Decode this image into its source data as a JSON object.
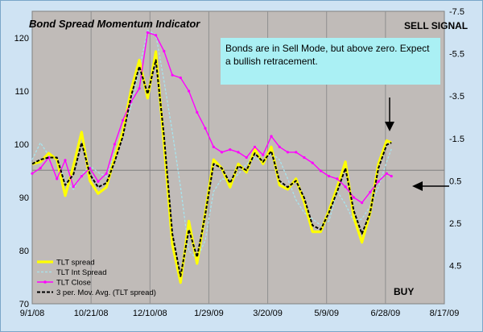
{
  "chart_data": {
    "type": "line",
    "title": "Bond Spread Momentum Indicator",
    "annotations": {
      "top_right": "SELL SIGNAL",
      "bottom_right": "BUY",
      "note_lines": [
        "Bonds are in Sell Mode, but above zero.  Expect",
        "a bullish retracement."
      ]
    },
    "x_ticks": [
      "9/1/08",
      "10/21/08",
      "12/10/08",
      "1/29/09",
      "3/20/09",
      "5/9/09",
      "6/28/09",
      "8/17/09"
    ],
    "y_left_ticks": [
      "70",
      "80",
      "90",
      "100",
      "110",
      "120"
    ],
    "y_right_ticks": [
      "-7.5",
      "-5.5",
      "-3.5",
      "-1.5",
      "0.5",
      "2.5",
      "4.5"
    ],
    "y_left_range": [
      70,
      125
    ],
    "y_right_range": [
      6.3,
      -7.5
    ],
    "y_right_inverted": true,
    "zero_line_right": 0,
    "legend_placement": "bottom-left",
    "series": [
      {
        "name": "TLT spread",
        "axis": "right",
        "color": "#ffff00",
        "x": [
          "9/1/08",
          "9/8/08",
          "9/15/08",
          "9/22/08",
          "9/29/08",
          "10/6/08",
          "10/13/08",
          "10/20/08",
          "10/27/08",
          "11/3/08",
          "11/10/08",
          "11/17/08",
          "11/24/08",
          "12/1/08",
          "12/8/08",
          "12/15/08",
          "12/22/08",
          "12/29/08",
          "1/5/09",
          "1/12/09",
          "1/19/09",
          "1/26/09",
          "2/2/09",
          "2/9/09",
          "2/16/09",
          "2/23/09",
          "3/2/09",
          "3/9/09",
          "3/16/09",
          "3/23/09",
          "3/30/09",
          "4/6/09",
          "4/13/09",
          "4/20/09",
          "4/27/09",
          "5/4/09",
          "5/11/09",
          "5/18/09",
          "5/25/09",
          "6/1/09",
          "6/8/09",
          "6/15/09",
          "6/22/09",
          "6/29/09",
          "7/3/09"
        ],
        "values": [
          -0.3,
          -0.4,
          -0.8,
          -0.5,
          1.2,
          -0.2,
          -1.8,
          0.5,
          1.1,
          0.8,
          -0.6,
          -1.8,
          -3.8,
          -5.2,
          -3.4,
          -5.6,
          -1.2,
          3.5,
          5.3,
          2.4,
          4.4,
          2.0,
          -0.5,
          -0.1,
          0.8,
          -0.3,
          0.1,
          -1.0,
          -0.3,
          -1.1,
          0.7,
          0.9,
          0.4,
          1.5,
          2.9,
          2.9,
          1.9,
          0.8,
          -0.4,
          2.2,
          3.4,
          2.0,
          -0.3,
          -1.4,
          -1.3
        ]
      },
      {
        "name": "TLT Int Spread",
        "axis": "right",
        "color": "#a6e4ee",
        "x": [
          "9/1/08",
          "9/8/08",
          "9/15/08",
          "9/22/08",
          "9/29/08",
          "10/6/08",
          "10/13/08",
          "10/20/08",
          "10/27/08",
          "11/3/08",
          "11/10/08",
          "11/17/08",
          "11/24/08",
          "12/1/08",
          "12/8/08",
          "12/15/08",
          "12/22/08",
          "12/29/08",
          "1/5/09",
          "1/12/09",
          "1/19/09",
          "1/26/09",
          "2/2/09",
          "2/9/09",
          "2/16/09",
          "2/23/09",
          "3/2/09",
          "3/9/09",
          "3/16/09",
          "3/23/09",
          "3/30/09",
          "4/6/09",
          "4/13/09",
          "4/20/09",
          "4/27/09",
          "5/4/09",
          "5/11/09",
          "5/18/09",
          "5/25/09",
          "6/1/09",
          "6/8/09",
          "6/15/09",
          "6/22/09",
          "6/29/09",
          "7/3/09"
        ],
        "values": [
          -0.5,
          -1.3,
          -0.7,
          -0.5,
          0.5,
          0.9,
          0.2,
          -0.2,
          0.1,
          0.3,
          -0.8,
          -1.8,
          -3.0,
          -4.8,
          -6.6,
          -6.4,
          -4.2,
          -1.8,
          0.8,
          3.8,
          4.2,
          3.3,
          1.0,
          0.4,
          0.5,
          0.2,
          -0.3,
          -0.6,
          -0.4,
          -0.8,
          -0.5,
          0.4,
          1.4,
          2.0,
          2.3,
          2.6,
          2.4,
          1.0,
          1.6,
          2.4,
          2.3,
          1.7,
          0.8,
          -0.4,
          -1.0
        ]
      },
      {
        "name": "TLT Close",
        "axis": "left",
        "color": "#ff00ff",
        "x": [
          "9/1/08",
          "9/8/08",
          "9/15/08",
          "9/22/08",
          "9/29/08",
          "10/6/08",
          "10/13/08",
          "10/20/08",
          "10/27/08",
          "11/3/08",
          "11/10/08",
          "11/17/08",
          "11/24/08",
          "12/1/08",
          "12/8/08",
          "12/15/08",
          "12/22/08",
          "12/29/08",
          "1/5/09",
          "1/12/09",
          "1/19/09",
          "1/26/09",
          "2/2/09",
          "2/9/09",
          "2/16/09",
          "2/23/09",
          "3/2/09",
          "3/9/09",
          "3/16/09",
          "3/23/09",
          "3/30/09",
          "4/6/09",
          "4/13/09",
          "4/20/09",
          "4/27/09",
          "5/4/09",
          "5/11/09",
          "5/18/09",
          "5/25/09",
          "6/1/09",
          "6/8/09",
          "6/15/09",
          "6/22/09",
          "6/29/09",
          "7/3/09"
        ],
        "values": [
          94.5,
          95.5,
          97.5,
          93.5,
          97,
          92,
          94,
          95.5,
          93,
          94.5,
          100,
          104.5,
          108,
          110.5,
          121,
          120.5,
          117.5,
          113,
          112.5,
          110,
          106,
          103,
          99.5,
          98.5,
          99,
          98.5,
          97.5,
          99.5,
          98,
          101.5,
          99.5,
          98.5,
          98.5,
          97.5,
          96.5,
          95,
          94,
          93.5,
          92,
          90,
          89,
          91,
          93,
          94.5,
          94
        ]
      },
      {
        "name": "3 per. Mov. Avg. (TLT spread)",
        "axis": "right",
        "color": "#000000",
        "x": [
          "9/1/08",
          "9/8/08",
          "9/15/08",
          "9/22/08",
          "9/29/08",
          "10/6/08",
          "10/13/08",
          "10/20/08",
          "10/27/08",
          "11/3/08",
          "11/10/08",
          "11/17/08",
          "11/24/08",
          "12/1/08",
          "12/8/08",
          "12/15/08",
          "12/22/08",
          "12/29/08",
          "1/5/09",
          "1/12/09",
          "1/19/09",
          "1/26/09",
          "2/2/09",
          "2/9/09",
          "2/16/09",
          "2/23/09",
          "3/2/09",
          "3/9/09",
          "3/16/09",
          "3/23/09",
          "3/30/09",
          "4/6/09",
          "4/13/09",
          "4/20/09",
          "4/27/09",
          "5/4/09",
          "5/11/09",
          "5/18/09",
          "5/25/09",
          "6/1/09",
          "6/8/09",
          "6/15/09",
          "6/22/09",
          "6/29/09",
          "7/3/09"
        ],
        "values": [
          -0.3,
          -0.5,
          -0.6,
          -0.6,
          0.7,
          0.2,
          -1.3,
          0.2,
          0.8,
          0.6,
          -0.4,
          -1.6,
          -3.5,
          -4.9,
          -3.6,
          -5.2,
          -1.6,
          3.0,
          5.0,
          2.8,
          4.1,
          2.1,
          -0.3,
          -0.1,
          0.6,
          -0.2,
          0.0,
          -0.8,
          -0.4,
          -0.9,
          0.5,
          0.8,
          0.5,
          1.3,
          2.6,
          2.8,
          2.0,
          1.0,
          -0.1,
          1.9,
          3.0,
          2.0,
          -0.1,
          -1.2,
          -1.3
        ]
      }
    ]
  }
}
